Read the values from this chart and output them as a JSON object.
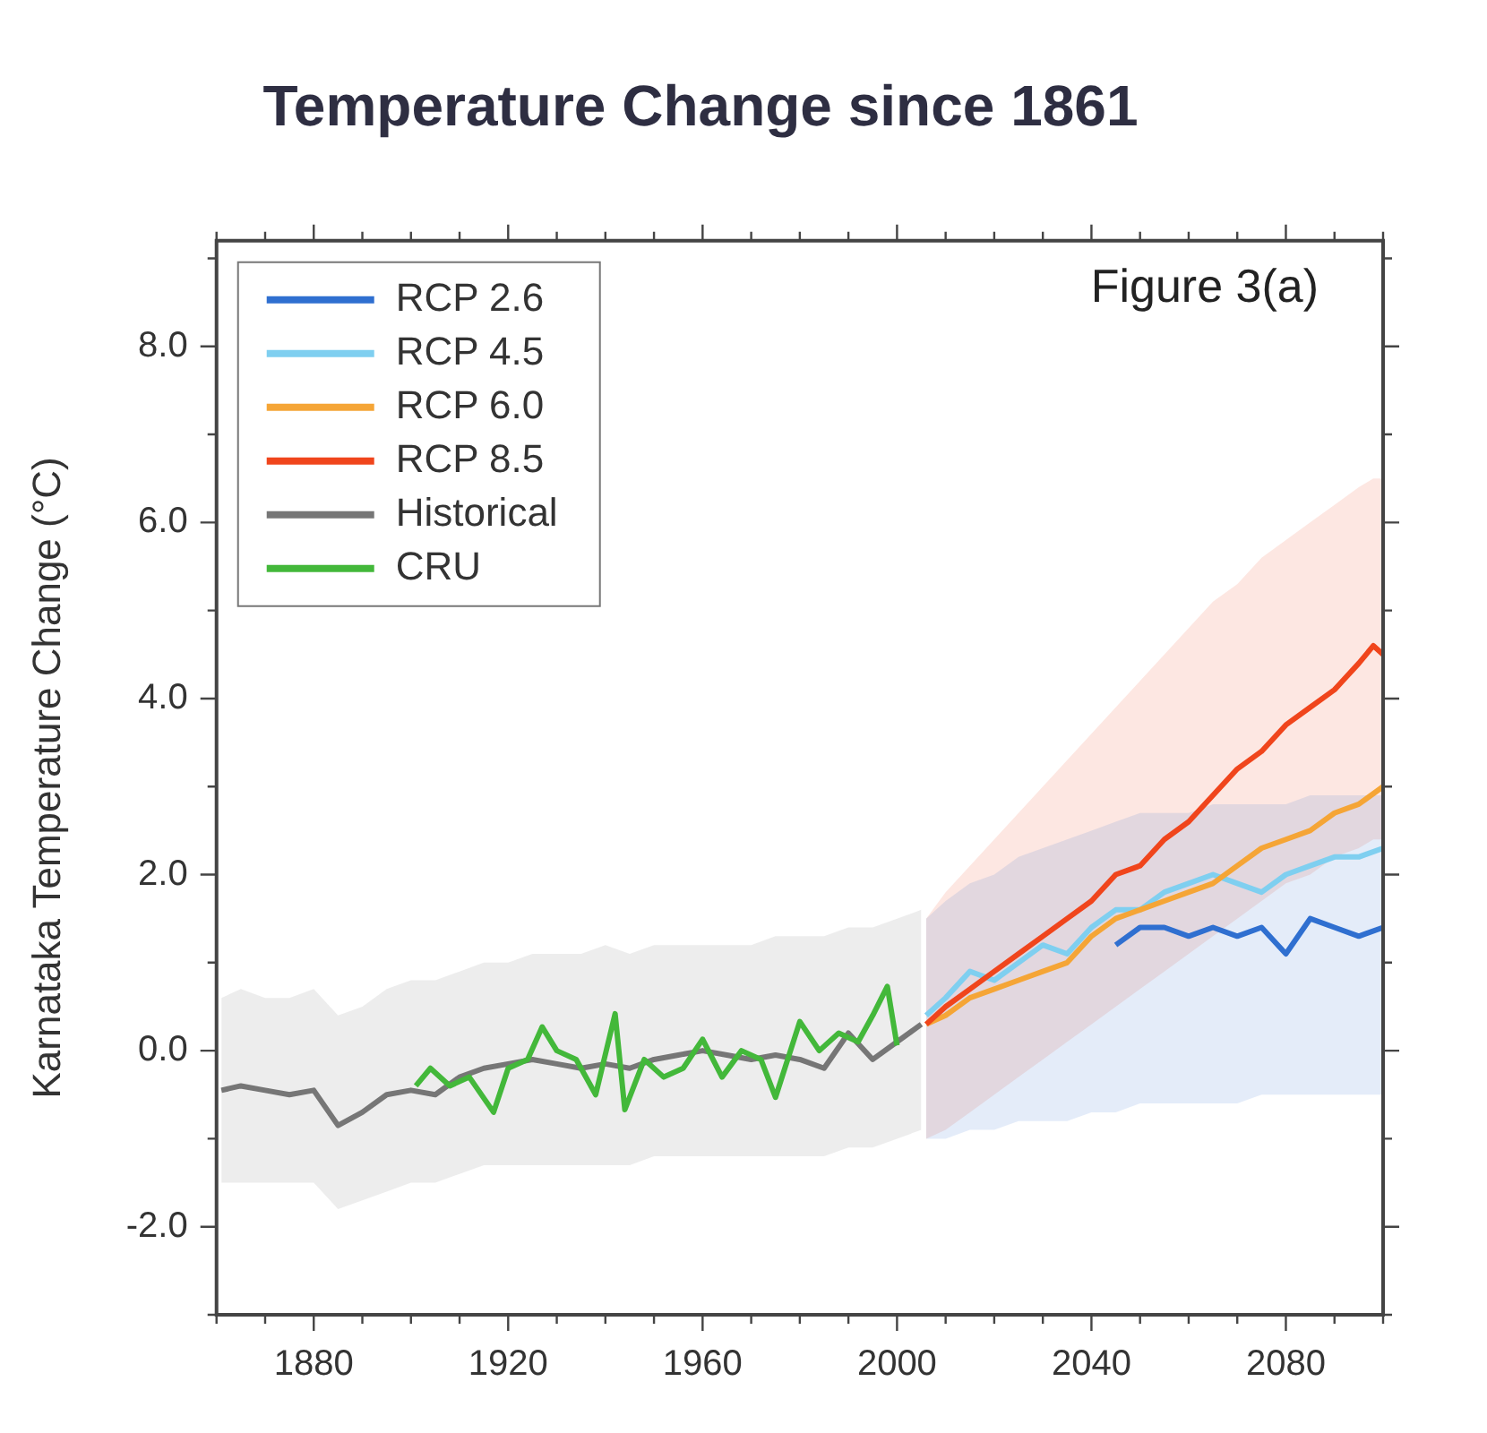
{
  "chart_data": {
    "type": "line",
    "title": "Temperature Change since 1861",
    "ylabel": "Karnataka Temperature Change (°C)",
    "annotations": [
      "Figure 3(a)"
    ],
    "xlim": [
      1860,
      2100
    ],
    "xticks": [
      {
        "value": 1860,
        "label": null
      },
      {
        "value": 1870,
        "label": null
      },
      1880,
      {
        "value": 1890,
        "label": null
      },
      {
        "value": 1900,
        "label": null
      },
      {
        "value": 1910,
        "label": null
      },
      1920,
      {
        "value": 1930,
        "label": null
      },
      {
        "value": 1940,
        "label": null
      },
      {
        "value": 1950,
        "label": null
      },
      1960,
      {
        "value": 1970,
        "label": null
      },
      {
        "value": 1980,
        "label": null
      },
      {
        "value": 1990,
        "label": null
      },
      2000,
      {
        "value": 2010,
        "label": null
      },
      {
        "value": 2020,
        "label": null
      },
      {
        "value": 2030,
        "label": null
      },
      2040,
      {
        "value": 2050,
        "label": null
      },
      {
        "value": 2060,
        "label": null
      },
      {
        "value": 2070,
        "label": null
      },
      2080,
      {
        "value": 2090,
        "label": null
      },
      {
        "value": 2100,
        "label": null
      }
    ],
    "ylim": [
      -3,
      9.2
    ],
    "yticks": [
      {
        "value": -3,
        "label": null
      },
      {
        "value": -2,
        "label": "-2.0"
      },
      {
        "value": -1,
        "label": null
      },
      {
        "value": 0,
        "label": "0.0"
      },
      {
        "value": 1,
        "label": null
      },
      {
        "value": 2,
        "label": "2.0"
      },
      {
        "value": 3,
        "label": null
      },
      {
        "value": 4,
        "label": "4.0"
      },
      {
        "value": 5,
        "label": null
      },
      {
        "value": 6,
        "label": "6.0"
      },
      {
        "value": 7,
        "label": null
      },
      {
        "value": 8,
        "label": "8.0"
      },
      {
        "value": 9,
        "label": null
      }
    ],
    "grid": false,
    "legend": "top left",
    "marker": "none",
    "line_style": "solid",
    "series": [
      {
        "name": "RCP 2.6",
        "color": "#2f6fd0",
        "x": [
          2006,
          2010,
          2015,
          2020,
          2025,
          2030,
          2035,
          2040,
          2045,
          2050,
          2055,
          2060,
          2065,
          2070,
          2075,
          2080,
          2085,
          2090,
          2095,
          2100
        ],
        "values": [
          null,
          null,
          null,
          null,
          null,
          null,
          null,
          null,
          1.2,
          1.4,
          1.4,
          1.3,
          1.4,
          1.3,
          1.4,
          1.1,
          1.5,
          1.4,
          1.3,
          1.4
        ],
        "lower": [
          -1.0,
          -1.0,
          -0.9,
          -0.9,
          -0.8,
          -0.8,
          -0.8,
          -0.7,
          -0.7,
          -0.6,
          -0.6,
          -0.6,
          -0.6,
          -0.6,
          -0.5,
          -0.5,
          -0.5,
          -0.5,
          -0.5,
          -0.5
        ],
        "upper": [
          1.5,
          1.7,
          1.9,
          2.0,
          2.2,
          2.3,
          2.4,
          2.5,
          2.6,
          2.7,
          2.7,
          2.7,
          2.8,
          2.8,
          2.8,
          2.8,
          2.9,
          2.9,
          2.9,
          2.9
        ]
      },
      {
        "name": "RCP 4.5",
        "color": "#7fcff0",
        "x": [
          2006,
          2010,
          2015,
          2020,
          2025,
          2030,
          2035,
          2040,
          2045,
          2050,
          2055,
          2060,
          2065,
          2070,
          2075,
          2080,
          2085,
          2090,
          2095,
          2100
        ],
        "values": [
          0.4,
          0.6,
          0.9,
          0.8,
          1.0,
          1.2,
          1.1,
          1.4,
          1.6,
          1.6,
          1.8,
          1.9,
          2.0,
          1.9,
          1.8,
          2.0,
          2.1,
          2.2,
          2.2,
          2.3
        ]
      },
      {
        "name": "RCP 6.0",
        "color": "#f5a536",
        "x": [
          2006,
          2010,
          2015,
          2020,
          2025,
          2030,
          2035,
          2040,
          2045,
          2050,
          2055,
          2060,
          2065,
          2070,
          2075,
          2080,
          2085,
          2090,
          2095,
          2100
        ],
        "values": [
          0.3,
          0.4,
          0.6,
          0.7,
          0.8,
          0.9,
          1.0,
          1.3,
          1.5,
          1.6,
          1.7,
          1.8,
          1.9,
          2.1,
          2.3,
          2.4,
          2.5,
          2.7,
          2.8,
          3.0
        ]
      },
      {
        "name": "RCP 8.5",
        "color": "#f0451c",
        "x": [
          2006,
          2010,
          2015,
          2020,
          2025,
          2030,
          2035,
          2040,
          2045,
          2050,
          2055,
          2060,
          2065,
          2070,
          2075,
          2080,
          2085,
          2090,
          2095,
          2098,
          2100
        ],
        "values": [
          0.3,
          0.5,
          0.7,
          0.9,
          1.1,
          1.3,
          1.5,
          1.7,
          2.0,
          2.1,
          2.4,
          2.6,
          2.9,
          3.2,
          3.4,
          3.7,
          3.9,
          4.1,
          4.4,
          4.6,
          4.5
        ],
        "lower": [
          -1.0,
          -0.9,
          -0.7,
          -0.5,
          -0.3,
          -0.1,
          0.1,
          0.3,
          0.5,
          0.7,
          0.9,
          1.1,
          1.3,
          1.5,
          1.7,
          1.9,
          2.0,
          2.2,
          2.3,
          2.4,
          2.4
        ],
        "upper": [
          1.5,
          1.8,
          2.1,
          2.4,
          2.7,
          3.0,
          3.3,
          3.6,
          3.9,
          4.2,
          4.5,
          4.8,
          5.1,
          5.3,
          5.6,
          5.8,
          6.0,
          6.2,
          6.4,
          6.5,
          6.5
        ]
      },
      {
        "name": "Historical",
        "color": "#767676",
        "x": [
          1861,
          1865,
          1870,
          1875,
          1880,
          1885,
          1890,
          1895,
          1900,
          1905,
          1910,
          1915,
          1920,
          1925,
          1930,
          1935,
          1940,
          1945,
          1950,
          1955,
          1960,
          1965,
          1970,
          1975,
          1980,
          1985,
          1990,
          1995,
          2000,
          2005
        ],
        "values": [
          -0.45,
          -0.4,
          -0.45,
          -0.5,
          -0.45,
          -0.85,
          -0.7,
          -0.5,
          -0.45,
          -0.5,
          -0.3,
          -0.2,
          -0.15,
          -0.1,
          -0.15,
          -0.2,
          -0.15,
          -0.2,
          -0.1,
          -0.05,
          0.0,
          -0.05,
          -0.1,
          -0.05,
          -0.1,
          -0.2,
          0.2,
          -0.1,
          0.1,
          0.3
        ],
        "lower": [
          -1.5,
          -1.5,
          -1.5,
          -1.5,
          -1.5,
          -1.8,
          -1.7,
          -1.6,
          -1.5,
          -1.5,
          -1.4,
          -1.3,
          -1.3,
          -1.3,
          -1.3,
          -1.3,
          -1.3,
          -1.3,
          -1.2,
          -1.2,
          -1.2,
          -1.2,
          -1.2,
          -1.2,
          -1.2,
          -1.2,
          -1.1,
          -1.1,
          -1.0,
          -0.9
        ],
        "upper": [
          0.6,
          0.7,
          0.6,
          0.6,
          0.7,
          0.4,
          0.5,
          0.7,
          0.8,
          0.8,
          0.9,
          1.0,
          1.0,
          1.1,
          1.1,
          1.1,
          1.2,
          1.1,
          1.2,
          1.2,
          1.2,
          1.2,
          1.2,
          1.3,
          1.3,
          1.3,
          1.4,
          1.4,
          1.5,
          1.6
        ]
      },
      {
        "name": "CRU",
        "color": "#43b83a",
        "x": [
          1901,
          1904,
          1908,
          1912,
          1917,
          1920,
          1924,
          1927,
          1930,
          1934,
          1938,
          1942,
          1944,
          1948,
          1952,
          1956,
          1960,
          1964,
          1968,
          1972,
          1975,
          1980,
          1984,
          1988,
          1992,
          1995,
          1998,
          2000
        ],
        "values": [
          -0.4,
          -0.2,
          -0.4,
          -0.3,
          -0.7,
          -0.2,
          -0.1,
          0.27,
          0.0,
          -0.1,
          -0.5,
          0.42,
          -0.67,
          -0.1,
          -0.3,
          -0.2,
          0.13,
          -0.3,
          0.0,
          -0.1,
          -0.53,
          0.33,
          0.0,
          0.2,
          0.1,
          0.4,
          0.73,
          0.06
        ]
      }
    ]
  }
}
